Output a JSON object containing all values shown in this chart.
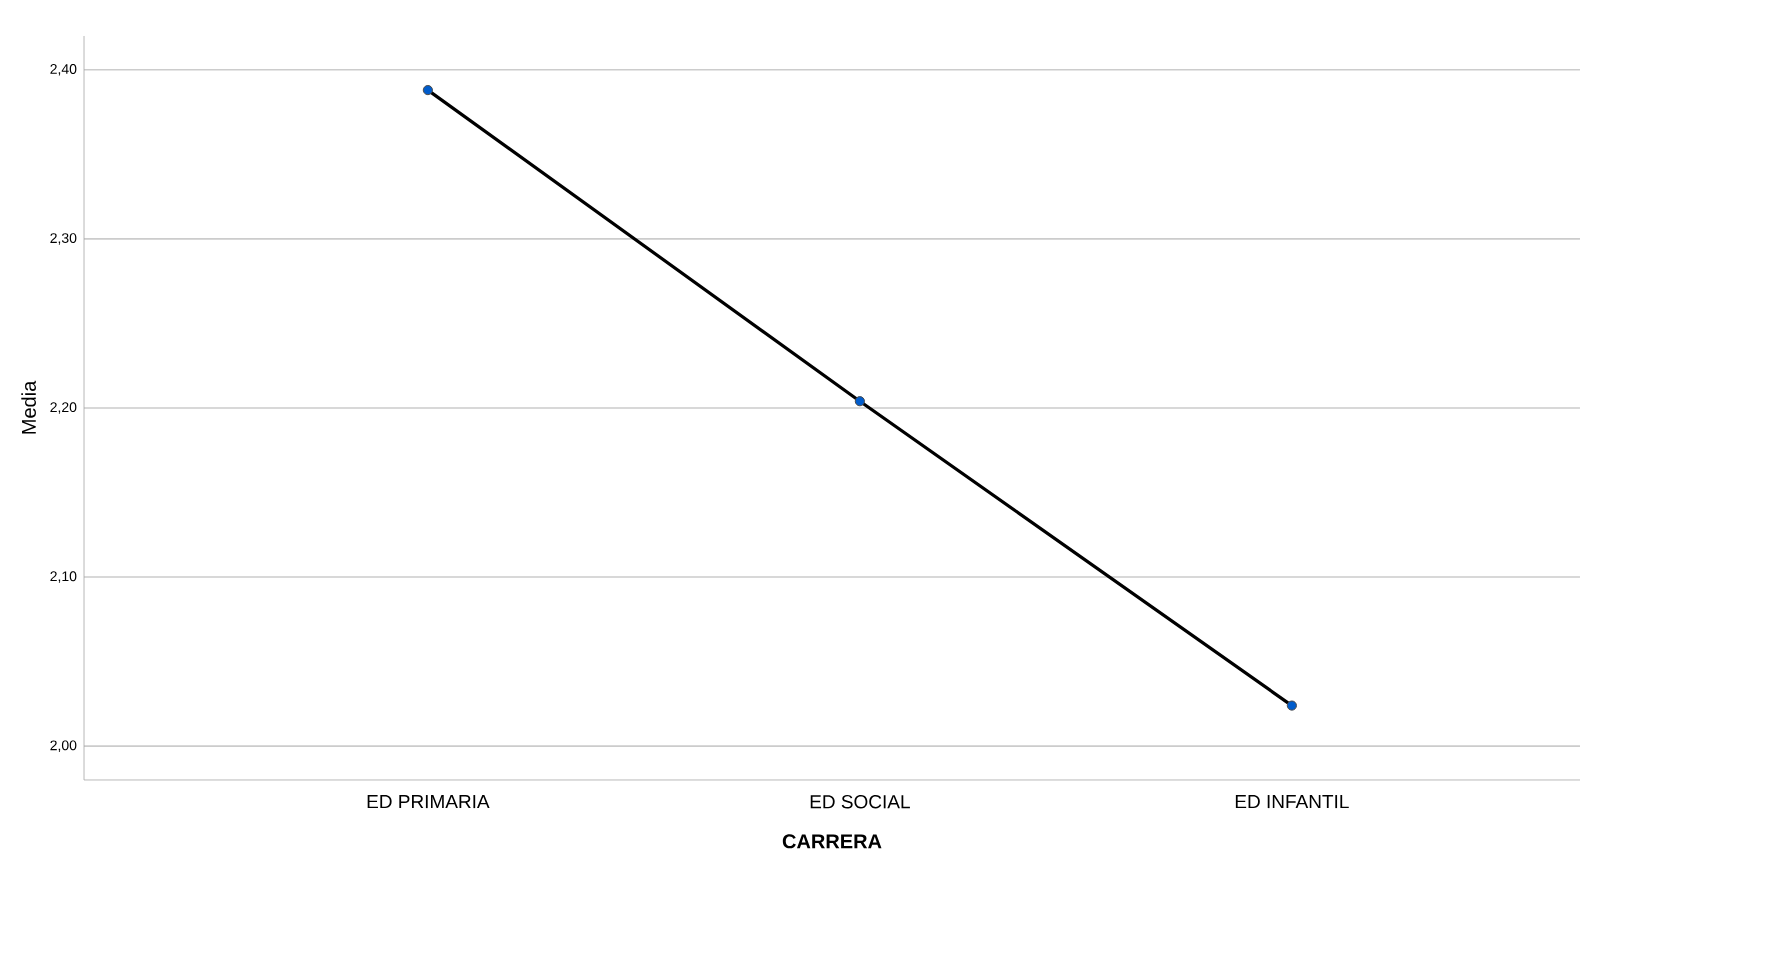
{
  "chart_data": {
    "type": "line",
    "xlabel": "CARRERA",
    "ylabel": "Media",
    "categories": [
      "ED PRIMARIA",
      "ED SOCIAL",
      "ED INFANTIL"
    ],
    "series": [
      {
        "color": "#000000",
        "values": [
          2.388,
          2.204,
          2.024
        ]
      }
    ],
    "ylim": [
      1.98,
      2.42
    ],
    "yticks": [
      {
        "value": 2.0,
        "label": "2,00"
      },
      {
        "value": 2.1,
        "label": "2,10"
      },
      {
        "value": 2.2,
        "label": "2,20"
      },
      {
        "value": 2.3,
        "label": "2,30"
      },
      {
        "value": 2.4,
        "label": "2,40"
      }
    ],
    "grid": "y",
    "marker": "circle",
    "line_style": "solid"
  }
}
